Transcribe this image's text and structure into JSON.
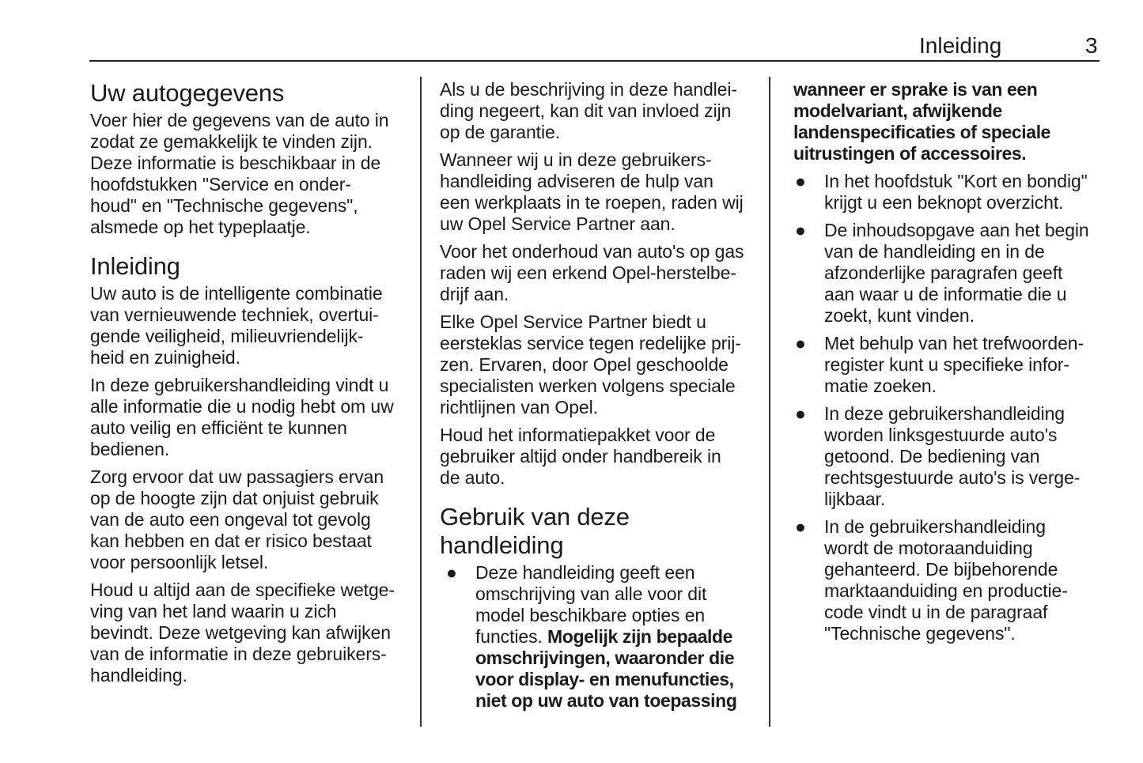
{
  "header": {
    "section": "Inleiding",
    "page": "3"
  },
  "col1": [
    {
      "type": "h",
      "text": "Uw autogegevens"
    },
    {
      "type": "p",
      "lines": [
        "Voer hier de gegevens van de auto in",
        "zodat ze gemakkelijk te vinden zijn.",
        "Deze informatie is beschikbaar in de",
        "hoofdstukken \"Service en onder-",
        "houd\" en \"Technische gegevens\",",
        "alsmede op het typeplaatje."
      ]
    },
    {
      "type": "h",
      "text": "Inleiding",
      "second": true
    },
    {
      "type": "p",
      "lines": [
        "Uw auto is de intelligente combinatie",
        "van vernieuwende techniek, overtui-",
        "gende veiligheid, milieuvriendelijk-",
        "heid en zuinigheid."
      ]
    },
    {
      "type": "p",
      "lines": [
        "In deze gebruikershandleiding vindt u",
        "alle informatie die u nodig hebt om uw",
        "auto veilig en efficiënt te kunnen",
        "bedienen."
      ]
    },
    {
      "type": "p",
      "lines": [
        "Zorg ervoor dat uw passagiers ervan",
        "op de hoogte zijn dat onjuist gebruik",
        "van de auto een ongeval tot gevolg",
        "kan hebben en dat er risico bestaat",
        "voor persoonlijk letsel."
      ]
    },
    {
      "type": "p",
      "lines": [
        "Houd u altijd aan de specifieke wetge-",
        "ving van het land waarin u zich",
        "bevindt. Deze wetgeving kan afwijken",
        "van de informatie in deze gebruikers-",
        "handleiding."
      ]
    }
  ],
  "col2": [
    {
      "type": "p",
      "lines": [
        "Als u de beschrijving in deze handlei-",
        "ding negeert, kan dit van invloed zijn",
        "op de garantie."
      ]
    },
    {
      "type": "p",
      "lines": [
        "Wanneer wij u in deze gebruikers-",
        "handleiding adviseren de hulp van",
        "een werkplaats in te roepen, raden wij",
        "uw Opel Service Partner aan."
      ]
    },
    {
      "type": "p",
      "lines": [
        "Voor het onderhoud van auto's op gas",
        "raden wij een erkend Opel-herstelbe-",
        "drijf aan."
      ]
    },
    {
      "type": "p",
      "lines": [
        "Elke Opel Service Partner biedt u",
        "eersteklas service tegen redelijke prij-",
        "zen. Ervaren, door Opel geschoolde",
        "specialisten werken volgens speciale",
        "richtlijnen van Opel."
      ]
    },
    {
      "type": "p",
      "lines": [
        "Houd het informatiepakket voor de",
        "gebruiker altijd onder handbereik in",
        "de auto."
      ]
    },
    {
      "type": "h",
      "text": "Gebruik van deze handleiding",
      "lines": [
        "Gebruik van deze",
        "handleiding"
      ],
      "second": true
    },
    {
      "type": "bullet",
      "lines": [
        "Deze handleiding geeft een",
        "omschrijving van alle voor dit",
        "model beschikbare opties en",
        [
          {
            "t": "functies. "
          },
          {
            "t": "Mogelijk zijn bepaalde",
            "b": true
          }
        ],
        [
          {
            "t": "omschrijvingen, waaronder die",
            "b": true
          }
        ],
        [
          {
            "t": "voor display- en menufuncties,",
            "b": true
          }
        ],
        [
          {
            "t": "niet op uw auto van toepassing",
            "b": true
          }
        ]
      ]
    }
  ],
  "col3": [
    {
      "type": "p",
      "lines": [
        [
          {
            "t": "wanneer er sprake is van een",
            "b": true
          }
        ],
        [
          {
            "t": "modelvariant, afwijkende",
            "b": true
          }
        ],
        [
          {
            "t": "landenspecificaties of speciale",
            "b": true
          }
        ],
        [
          {
            "t": "uitrustingen of accessoires.",
            "b": true
          }
        ]
      ]
    },
    {
      "type": "bullet",
      "lines": [
        "In het hoofdstuk \"Kort en bondig\"",
        "krijgt u een beknopt overzicht."
      ]
    },
    {
      "type": "bullet",
      "lines": [
        "De inhoudsopgave aan het begin",
        "van de handleiding en in de",
        "afzonderlijke paragrafen geeft",
        "aan waar u de informatie die u",
        "zoekt, kunt vinden."
      ]
    },
    {
      "type": "bullet",
      "lines": [
        "Met behulp van het trefwoorden-",
        "register kunt u specifieke infor-",
        "matie zoeken."
      ]
    },
    {
      "type": "bullet",
      "lines": [
        "In deze gebruikershandleiding",
        "worden linksgestuurde auto's",
        "getoond. De bediening van",
        "rechtsgestuurde auto's is verge-",
        "lijkbaar."
      ]
    },
    {
      "type": "bullet",
      "lines": [
        "In de gebruikershandleiding",
        "wordt de motoraanduiding",
        "gehanteerd. De bijbehorende",
        "marktaanduiding en productie-",
        "code vindt u in de paragraaf",
        "\"Technische gegevens\"."
      ]
    }
  ],
  "bullet_glyph": "●"
}
